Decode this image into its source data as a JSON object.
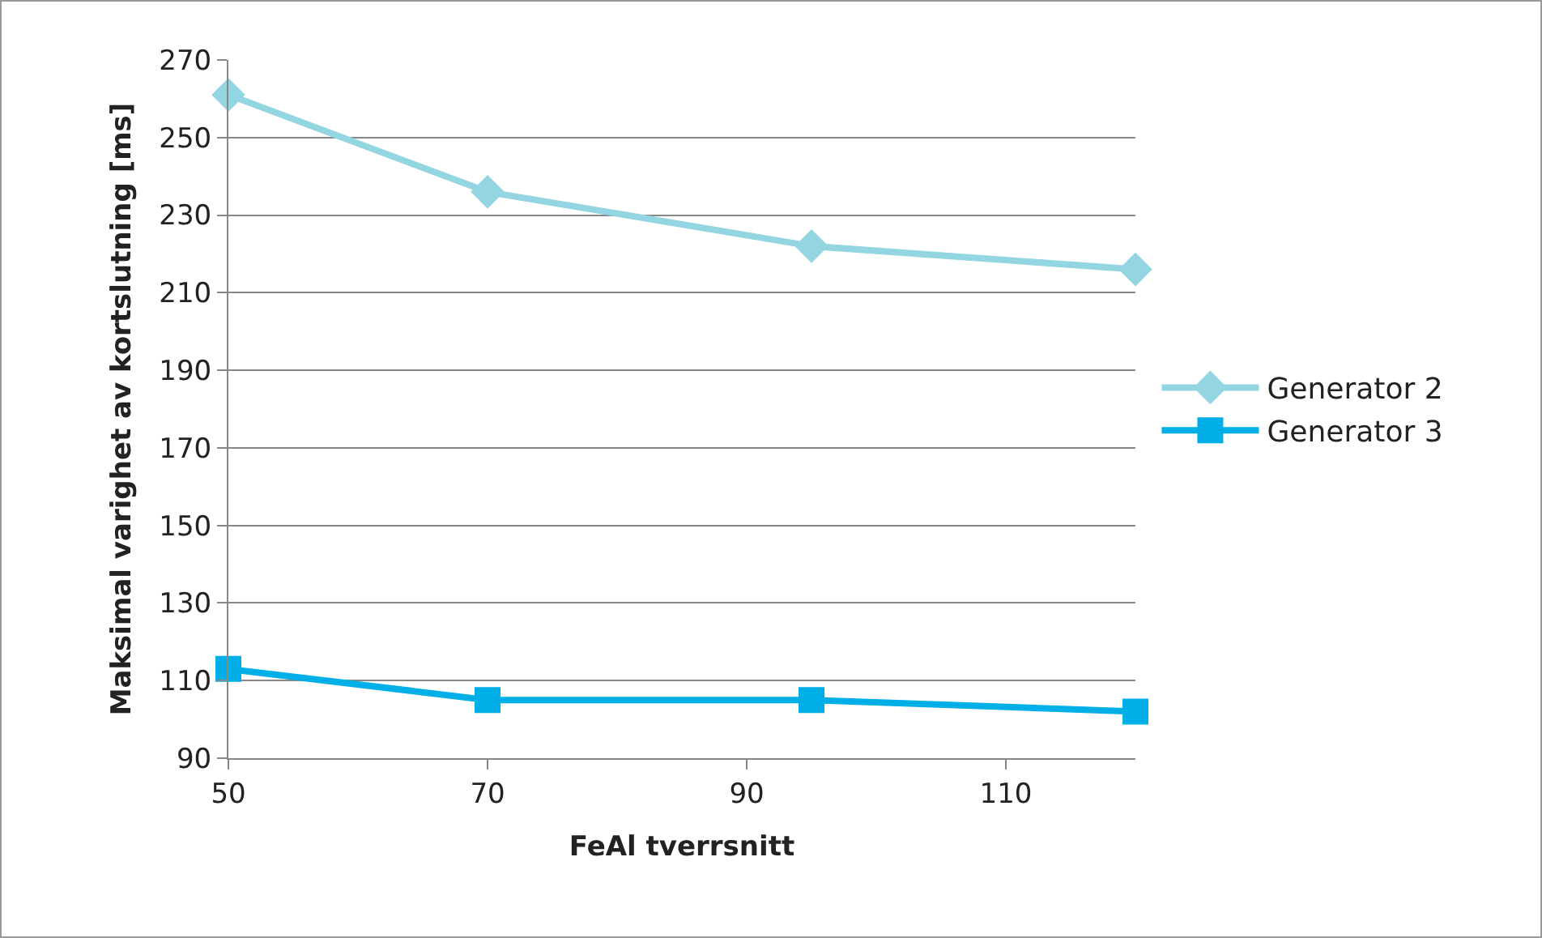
{
  "chart_data": {
    "type": "line",
    "xlabel": "FeAl tverrsnitt",
    "ylabel": "Maksimal varighet av kortslutning [ms]",
    "x": [
      50,
      70,
      95,
      120
    ],
    "series": [
      {
        "name": "Generator 2",
        "color": "#93d5e1",
        "marker": "diamond",
        "values": [
          261,
          236,
          222,
          216
        ]
      },
      {
        "name": "Generator 3",
        "color": "#00aee8",
        "marker": "square",
        "values": [
          113,
          105,
          105,
          102
        ]
      }
    ],
    "xlim": [
      50,
      120
    ],
    "xticks": [
      50,
      70,
      90,
      110
    ],
    "ylim": [
      90,
      270
    ],
    "yticks": [
      90,
      110,
      130,
      150,
      170,
      190,
      210,
      230,
      250,
      270
    ],
    "grid": "y",
    "legend": "right"
  }
}
